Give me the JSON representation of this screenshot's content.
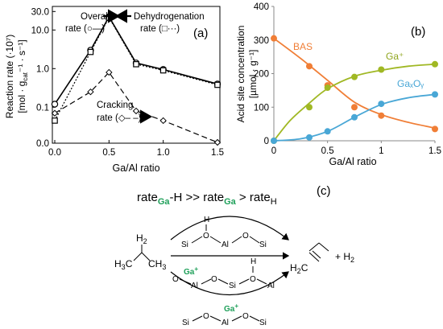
{
  "chart_data": [
    {
      "type": "line",
      "panel_label": "(a)",
      "ylabel_main": "Reaction rate (·10⁷)",
      "ylabel_units": "[mol · g",
      "ylabel_units_sub": "cat",
      "ylabel_units_rest": "⁻¹ · s⁻¹]",
      "xlabel": "Ga/Al ratio",
      "x_ticks": [
        "0.0",
        "0.5",
        "1.0",
        "1.5"
      ],
      "y_ticks": [
        "0.0",
        "0.1",
        "1.0",
        "10.0",
        "30.0"
      ],
      "y_scale": "log",
      "series": [
        {
          "name": "Overall rate (○—)",
          "x": [
            0.0,
            0.33,
            0.5,
            0.75,
            1.0,
            1.5
          ],
          "y": [
            0.12,
            3.0,
            22.0,
            1.4,
            0.95,
            0.4
          ]
        },
        {
          "name": "Dehydrogenation rate (□···)",
          "x": [
            0.0,
            0.33,
            0.5,
            0.75,
            1.0,
            1.5
          ],
          "y": [
            0.045,
            2.7,
            21.0,
            1.3,
            0.9,
            0.38
          ]
        },
        {
          "name": "Cracking rate (◇– –)",
          "x": [
            0.0,
            0.33,
            0.5,
            0.75,
            1.0,
            1.5
          ],
          "y": [
            0.07,
            0.25,
            0.8,
            0.08,
            0.045,
            0.012
          ]
        }
      ],
      "annotations": {
        "overall": [
          "Overall",
          "rate (○—)"
        ],
        "dehydrogenation": [
          "Dehydrogenation",
          "rate (□···)"
        ],
        "cracking": [
          "Cracking",
          "rate (◇– –)"
        ]
      }
    },
    {
      "type": "scatter",
      "panel_label": "(b)",
      "ylabel": "Acid site concentration",
      "ylabel_units": "[µmol · g⁻¹]",
      "xlabel": "Ga/Al ratio",
      "x_ticks": [
        "0",
        "0.5",
        "1",
        "1.5"
      ],
      "y_ticks": [
        "0",
        "100",
        "200",
        "300",
        "400"
      ],
      "xlim": [
        0,
        1.5
      ],
      "ylim": [
        0,
        400
      ],
      "series": [
        {
          "name": "BAS",
          "color": "#f07e36",
          "x": [
            0.0,
            0.33,
            0.5,
            0.75,
            1.0,
            1.5
          ],
          "y": [
            305,
            222,
            165,
            100,
            75,
            35
          ],
          "fit": [
            [
              0,
              305
            ],
            [
              0.25,
              245
            ],
            [
              0.5,
              180
            ],
            [
              0.75,
              115
            ],
            [
              1.0,
              78
            ],
            [
              1.25,
              55
            ],
            [
              1.5,
              38
            ]
          ]
        },
        {
          "name": "Ga⁺",
          "color": "#a0b824",
          "x": [
            0.0,
            0.33,
            0.5,
            0.75,
            1.0,
            1.5
          ],
          "y": [
            0,
            100,
            158,
            190,
            212,
            228
          ],
          "fit": [
            [
              0,
              0
            ],
            [
              0.15,
              60
            ],
            [
              0.33,
              112
            ],
            [
              0.5,
              155
            ],
            [
              0.75,
              192
            ],
            [
              1.0,
              210
            ],
            [
              1.25,
              222
            ],
            [
              1.5,
              228
            ]
          ]
        },
        {
          "name": "GaₓOᵧ",
          "color": "#49a7d6",
          "x": [
            0.0,
            0.33,
            0.5,
            0.75,
            1.0,
            1.5
          ],
          "y": [
            0,
            10,
            28,
            70,
            110,
            138
          ],
          "fit": [
            [
              0,
              0
            ],
            [
              0.25,
              6
            ],
            [
              0.5,
              28
            ],
            [
              0.75,
              70
            ],
            [
              1.0,
              108
            ],
            [
              1.25,
              128
            ],
            [
              1.5,
              138
            ]
          ]
        }
      ]
    }
  ],
  "panel_c": {
    "label": "(c)",
    "equation": {
      "p1": "rate",
      "p1_sub": "Ga",
      "p1_tail": "-H >> rate",
      "p2_sub": "Ga",
      "p2_tail": " > rate",
      "p3_sub": "H"
    },
    "propane": {
      "h2": "H",
      "h2_sub": "2",
      "h3c": "H",
      "h3c_sub": "3",
      "h3c_c": "C",
      "ch3": "CH",
      "ch3_sub": "3"
    },
    "propene": {
      "h2c": "H",
      "h2c_sub": "2",
      "h2c_c": "C"
    },
    "plus_h2": "+ H",
    "plus_h2_sub": "2",
    "atoms": {
      "si": "Si",
      "o": "O",
      "al": "Al",
      "h": "H",
      "ga": "Ga",
      "plus": "+"
    },
    "colors": {
      "ga": "#1fa05a"
    }
  }
}
